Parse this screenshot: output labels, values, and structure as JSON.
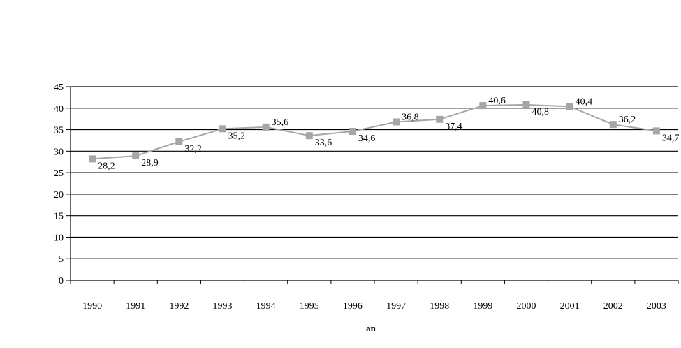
{
  "chart_data": {
    "type": "line",
    "categories": [
      "1990",
      "1991",
      "1992",
      "1993",
      "1994",
      "1995",
      "1996",
      "1997",
      "1998",
      "1999",
      "2000",
      "2001",
      "2002",
      "2003"
    ],
    "series": [
      {
        "values": [
          28.2,
          28.9,
          32.2,
          35.2,
          35.6,
          33.6,
          34.6,
          36.8,
          37.4,
          40.6,
          40.8,
          40.4,
          36.2,
          34.7
        ],
        "labels": [
          "28,2",
          "28,9",
          "32,2",
          "35,2",
          "35,6",
          "33,6",
          "34,6",
          "36,8",
          "37,4",
          "40,6",
          "40,8",
          "40,4",
          "36,2",
          "34,7"
        ],
        "color": "#a6a6a6",
        "marker": "square"
      }
    ],
    "xlabel": "an",
    "ylabel": "",
    "ylim": [
      0,
      45
    ],
    "yticks": [
      "0",
      "5",
      "10",
      "15",
      "20",
      "25",
      "30",
      "35",
      "40",
      "45"
    ],
    "grid": true,
    "legend": "none"
  }
}
